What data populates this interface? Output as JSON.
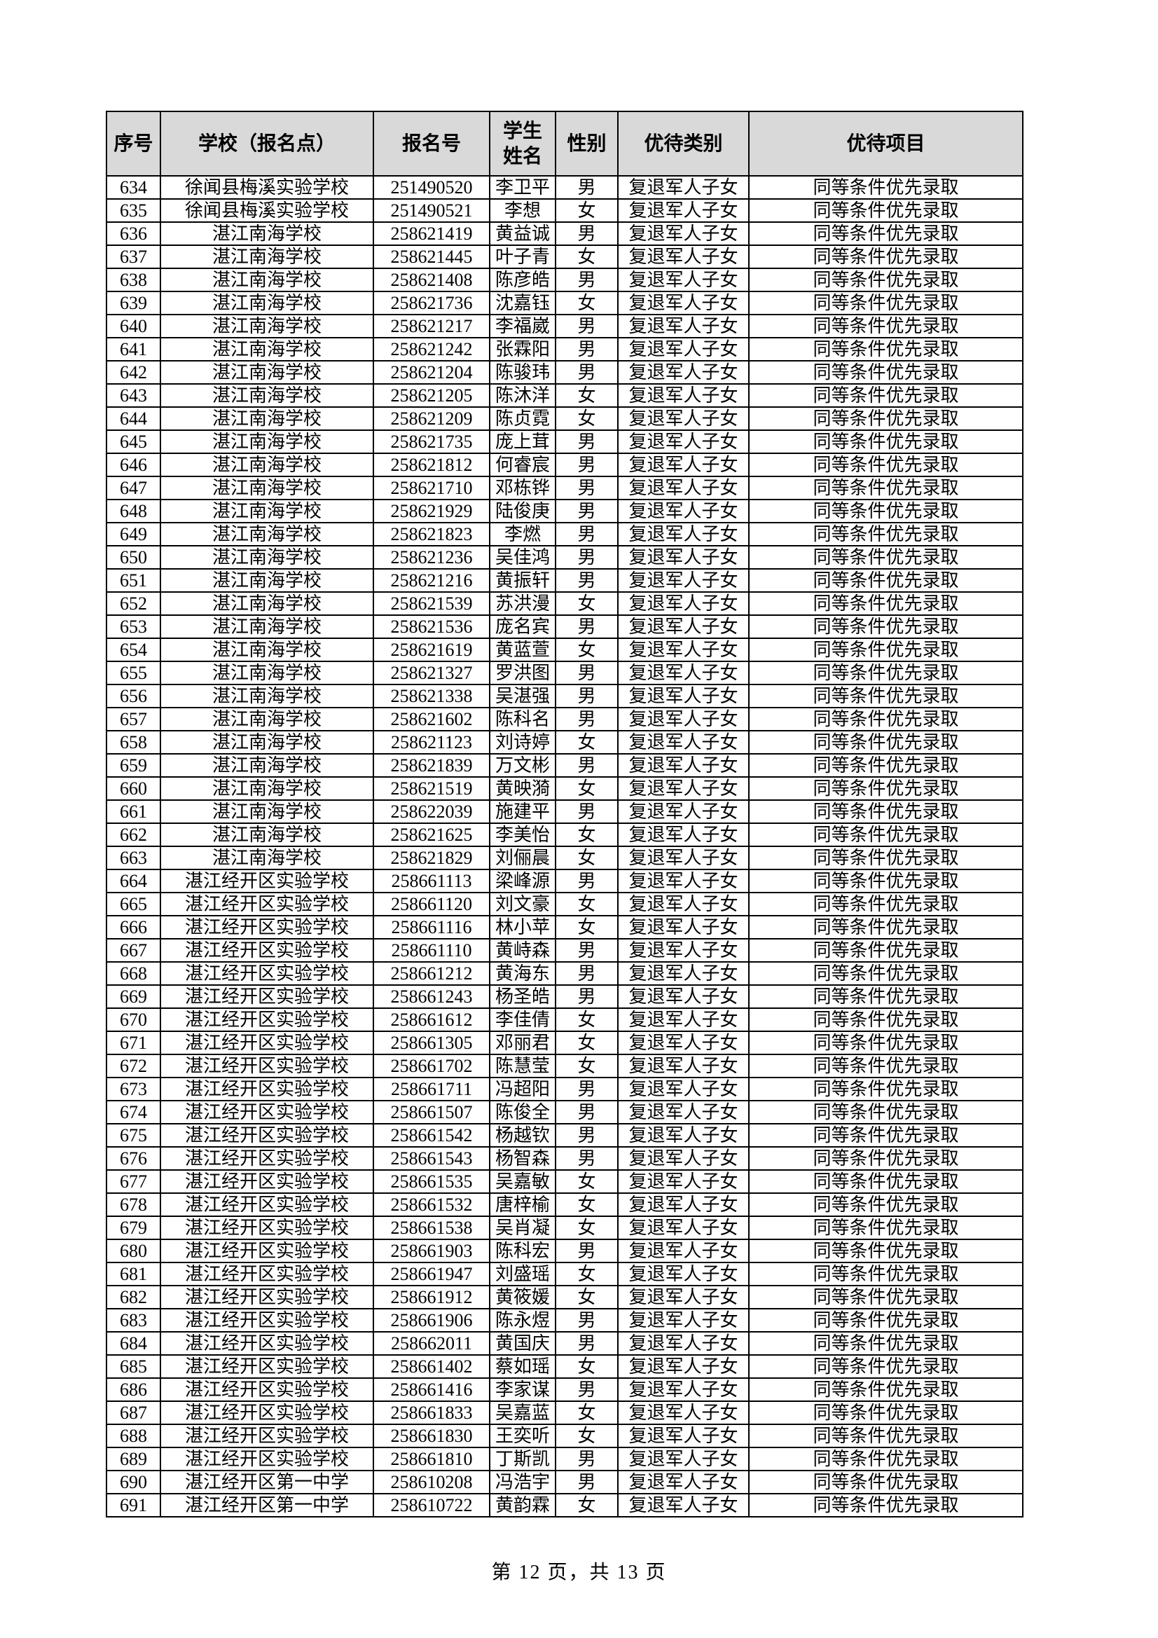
{
  "table": {
    "headers": [
      "序号",
      "学校（报名点）",
      "报名号",
      "学生\n姓名",
      "性别",
      "优待类别",
      "优待项目"
    ],
    "rows": [
      [
        "634",
        "徐闻县梅溪实验学校",
        "251490520",
        "李卫平",
        "男",
        "复退军人子女",
        "同等条件优先录取"
      ],
      [
        "635",
        "徐闻县梅溪实验学校",
        "251490521",
        "李想",
        "女",
        "复退军人子女",
        "同等条件优先录取"
      ],
      [
        "636",
        "湛江南海学校",
        "258621419",
        "黄益诚",
        "男",
        "复退军人子女",
        "同等条件优先录取"
      ],
      [
        "637",
        "湛江南海学校",
        "258621445",
        "叶子青",
        "女",
        "复退军人子女",
        "同等条件优先录取"
      ],
      [
        "638",
        "湛江南海学校",
        "258621408",
        "陈彦皓",
        "男",
        "复退军人子女",
        "同等条件优先录取"
      ],
      [
        "639",
        "湛江南海学校",
        "258621736",
        "沈嘉钰",
        "女",
        "复退军人子女",
        "同等条件优先录取"
      ],
      [
        "640",
        "湛江南海学校",
        "258621217",
        "李福崴",
        "男",
        "复退军人子女",
        "同等条件优先录取"
      ],
      [
        "641",
        "湛江南海学校",
        "258621242",
        "张霖阳",
        "男",
        "复退军人子女",
        "同等条件优先录取"
      ],
      [
        "642",
        "湛江南海学校",
        "258621204",
        "陈骏玮",
        "男",
        "复退军人子女",
        "同等条件优先录取"
      ],
      [
        "643",
        "湛江南海学校",
        "258621205",
        "陈沐洋",
        "女",
        "复退军人子女",
        "同等条件优先录取"
      ],
      [
        "644",
        "湛江南海学校",
        "258621209",
        "陈贞霓",
        "女",
        "复退军人子女",
        "同等条件优先录取"
      ],
      [
        "645",
        "湛江南海学校",
        "258621735",
        "庞上茸",
        "男",
        "复退军人子女",
        "同等条件优先录取"
      ],
      [
        "646",
        "湛江南海学校",
        "258621812",
        "何睿宸",
        "男",
        "复退军人子女",
        "同等条件优先录取"
      ],
      [
        "647",
        "湛江南海学校",
        "258621710",
        "邓栋铧",
        "男",
        "复退军人子女",
        "同等条件优先录取"
      ],
      [
        "648",
        "湛江南海学校",
        "258621929",
        "陆俊庚",
        "男",
        "复退军人子女",
        "同等条件优先录取"
      ],
      [
        "649",
        "湛江南海学校",
        "258621823",
        "李燃",
        "男",
        "复退军人子女",
        "同等条件优先录取"
      ],
      [
        "650",
        "湛江南海学校",
        "258621236",
        "吴佳鸿",
        "男",
        "复退军人子女",
        "同等条件优先录取"
      ],
      [
        "651",
        "湛江南海学校",
        "258621216",
        "黄振轩",
        "男",
        "复退军人子女",
        "同等条件优先录取"
      ],
      [
        "652",
        "湛江南海学校",
        "258621539",
        "苏洪漫",
        "女",
        "复退军人子女",
        "同等条件优先录取"
      ],
      [
        "653",
        "湛江南海学校",
        "258621536",
        "庞名宾",
        "男",
        "复退军人子女",
        "同等条件优先录取"
      ],
      [
        "654",
        "湛江南海学校",
        "258621619",
        "黄蓝萱",
        "女",
        "复退军人子女",
        "同等条件优先录取"
      ],
      [
        "655",
        "湛江南海学校",
        "258621327",
        "罗洪图",
        "男",
        "复退军人子女",
        "同等条件优先录取"
      ],
      [
        "656",
        "湛江南海学校",
        "258621338",
        "吴湛强",
        "男",
        "复退军人子女",
        "同等条件优先录取"
      ],
      [
        "657",
        "湛江南海学校",
        "258621602",
        "陈科名",
        "男",
        "复退军人子女",
        "同等条件优先录取"
      ],
      [
        "658",
        "湛江南海学校",
        "258621123",
        "刘诗婷",
        "女",
        "复退军人子女",
        "同等条件优先录取"
      ],
      [
        "659",
        "湛江南海学校",
        "258621839",
        "万文彬",
        "男",
        "复退军人子女",
        "同等条件优先录取"
      ],
      [
        "660",
        "湛江南海学校",
        "258621519",
        "黄映漪",
        "女",
        "复退军人子女",
        "同等条件优先录取"
      ],
      [
        "661",
        "湛江南海学校",
        "258622039",
        "施建平",
        "男",
        "复退军人子女",
        "同等条件优先录取"
      ],
      [
        "662",
        "湛江南海学校",
        "258621625",
        "李美怡",
        "女",
        "复退军人子女",
        "同等条件优先录取"
      ],
      [
        "663",
        "湛江南海学校",
        "258621829",
        "刘俪晨",
        "女",
        "复退军人子女",
        "同等条件优先录取"
      ],
      [
        "664",
        "湛江经开区实验学校",
        "258661113",
        "梁峰源",
        "男",
        "复退军人子女",
        "同等条件优先录取"
      ],
      [
        "665",
        "湛江经开区实验学校",
        "258661120",
        "刘文豪",
        "女",
        "复退军人子女",
        "同等条件优先录取"
      ],
      [
        "666",
        "湛江经开区实验学校",
        "258661116",
        "林小苹",
        "女",
        "复退军人子女",
        "同等条件优先录取"
      ],
      [
        "667",
        "湛江经开区实验学校",
        "258661110",
        "黄峙森",
        "男",
        "复退军人子女",
        "同等条件优先录取"
      ],
      [
        "668",
        "湛江经开区实验学校",
        "258661212",
        "黄海东",
        "男",
        "复退军人子女",
        "同等条件优先录取"
      ],
      [
        "669",
        "湛江经开区实验学校",
        "258661243",
        "杨圣皓",
        "男",
        "复退军人子女",
        "同等条件优先录取"
      ],
      [
        "670",
        "湛江经开区实验学校",
        "258661612",
        "李佳倩",
        "女",
        "复退军人子女",
        "同等条件优先录取"
      ],
      [
        "671",
        "湛江经开区实验学校",
        "258661305",
        "邓丽君",
        "女",
        "复退军人子女",
        "同等条件优先录取"
      ],
      [
        "672",
        "湛江经开区实验学校",
        "258661702",
        "陈慧莹",
        "女",
        "复退军人子女",
        "同等条件优先录取"
      ],
      [
        "673",
        "湛江经开区实验学校",
        "258661711",
        "冯超阳",
        "男",
        "复退军人子女",
        "同等条件优先录取"
      ],
      [
        "674",
        "湛江经开区实验学校",
        "258661507",
        "陈俊全",
        "男",
        "复退军人子女",
        "同等条件优先录取"
      ],
      [
        "675",
        "湛江经开区实验学校",
        "258661542",
        "杨越钦",
        "男",
        "复退军人子女",
        "同等条件优先录取"
      ],
      [
        "676",
        "湛江经开区实验学校",
        "258661543",
        "杨智森",
        "男",
        "复退军人子女",
        "同等条件优先录取"
      ],
      [
        "677",
        "湛江经开区实验学校",
        "258661535",
        "吴嘉敏",
        "女",
        "复退军人子女",
        "同等条件优先录取"
      ],
      [
        "678",
        "湛江经开区实验学校",
        "258661532",
        "唐梓榆",
        "女",
        "复退军人子女",
        "同等条件优先录取"
      ],
      [
        "679",
        "湛江经开区实验学校",
        "258661538",
        "吴肖凝",
        "女",
        "复退军人子女",
        "同等条件优先录取"
      ],
      [
        "680",
        "湛江经开区实验学校",
        "258661903",
        "陈科宏",
        "男",
        "复退军人子女",
        "同等条件优先录取"
      ],
      [
        "681",
        "湛江经开区实验学校",
        "258661947",
        "刘盛瑶",
        "女",
        "复退军人子女",
        "同等条件优先录取"
      ],
      [
        "682",
        "湛江经开区实验学校",
        "258661912",
        "黄筱媛",
        "女",
        "复退军人子女",
        "同等条件优先录取"
      ],
      [
        "683",
        "湛江经开区实验学校",
        "258661906",
        "陈永煜",
        "男",
        "复退军人子女",
        "同等条件优先录取"
      ],
      [
        "684",
        "湛江经开区实验学校",
        "258662011",
        "黄国庆",
        "男",
        "复退军人子女",
        "同等条件优先录取"
      ],
      [
        "685",
        "湛江经开区实验学校",
        "258661402",
        "蔡如瑶",
        "女",
        "复退军人子女",
        "同等条件优先录取"
      ],
      [
        "686",
        "湛江经开区实验学校",
        "258661416",
        "李家谋",
        "男",
        "复退军人子女",
        "同等条件优先录取"
      ],
      [
        "687",
        "湛江经开区实验学校",
        "258661833",
        "吴嘉蓝",
        "女",
        "复退军人子女",
        "同等条件优先录取"
      ],
      [
        "688",
        "湛江经开区实验学校",
        "258661830",
        "王奕听",
        "女",
        "复退军人子女",
        "同等条件优先录取"
      ],
      [
        "689",
        "湛江经开区实验学校",
        "258661810",
        "丁斯凯",
        "男",
        "复退军人子女",
        "同等条件优先录取"
      ],
      [
        "690",
        "湛江经开区第一中学",
        "258610208",
        "冯浩宇",
        "男",
        "复退军人子女",
        "同等条件优先录取"
      ],
      [
        "691",
        "湛江经开区第一中学",
        "258610722",
        "黄韵霖",
        "女",
        "复退军人子女",
        "同等条件优先录取"
      ]
    ]
  },
  "footer": {
    "page_label": "第 12 页，共 13 页"
  },
  "colors": {
    "header_bg": "#d9d9d9",
    "border": "#000000"
  }
}
